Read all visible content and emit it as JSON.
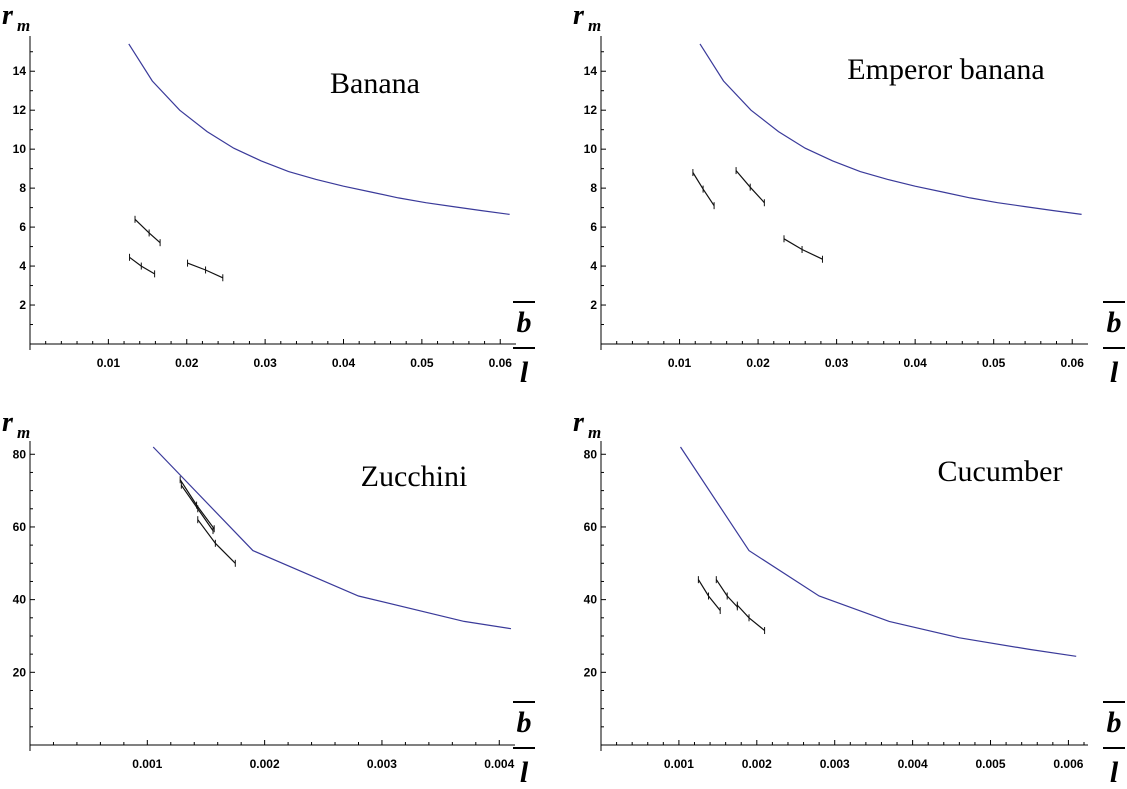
{
  "chart_data": [
    {
      "type": "line",
      "title": "Banana",
      "ylabel": "r",
      "ylabel_sub": "m",
      "xlabel_num": "b",
      "xlabel_den": "l",
      "xlim": [
        0,
        0.0615
      ],
      "ylim": [
        0,
        15.5
      ],
      "xticks": [
        0.01,
        0.02,
        0.03,
        0.04,
        0.05,
        0.06
      ],
      "xtick_labels": [
        "0.01",
        "0.02",
        "0.03",
        "0.04",
        "0.05",
        "0.06"
      ],
      "xminor": 0.002,
      "yticks": [
        2,
        4,
        6,
        8,
        10,
        12,
        14
      ],
      "ytick_labels": [
        "2",
        "4",
        "6",
        "8",
        "10",
        "12",
        "14"
      ],
      "yminor": 1,
      "curve_color": "#3a3a9a",
      "curve": [
        {
          "x": 0.0126,
          "y": 15.4
        },
        {
          "x": 0.0156,
          "y": 13.5
        },
        {
          "x": 0.0191,
          "y": 12.0
        },
        {
          "x": 0.0226,
          "y": 10.9
        },
        {
          "x": 0.026,
          "y": 10.05
        },
        {
          "x": 0.0295,
          "y": 9.4
        },
        {
          "x": 0.033,
          "y": 8.85
        },
        {
          "x": 0.0365,
          "y": 8.45
        },
        {
          "x": 0.04,
          "y": 8.1
        },
        {
          "x": 0.0435,
          "y": 7.8
        },
        {
          "x": 0.047,
          "y": 7.5
        },
        {
          "x": 0.0505,
          "y": 7.25
        },
        {
          "x": 0.054,
          "y": 7.05
        },
        {
          "x": 0.0575,
          "y": 6.85
        },
        {
          "x": 0.0612,
          "y": 6.65
        }
      ],
      "segments": [
        [
          {
            "x": 0.0134,
            "y": 6.4
          },
          {
            "x": 0.0152,
            "y": 5.7
          },
          {
            "x": 0.0166,
            "y": 5.2
          }
        ],
        [
          {
            "x": 0.0127,
            "y": 4.45
          },
          {
            "x": 0.0142,
            "y": 4.0
          },
          {
            "x": 0.0159,
            "y": 3.6
          }
        ],
        [
          {
            "x": 0.0201,
            "y": 4.15
          },
          {
            "x": 0.0224,
            "y": 3.8
          },
          {
            "x": 0.0246,
            "y": 3.4
          }
        ]
      ]
    },
    {
      "type": "line",
      "title": "Emperor banana",
      "ylabel": "r",
      "ylabel_sub": "m",
      "xlabel_num": "b",
      "xlabel_den": "l",
      "xlim": [
        0,
        0.0615
      ],
      "ylim": [
        0,
        15.5
      ],
      "xticks": [
        0.01,
        0.02,
        0.03,
        0.04,
        0.05,
        0.06
      ],
      "xtick_labels": [
        "0.01",
        "0.02",
        "0.03",
        "0.04",
        "0.05",
        "0.06"
      ],
      "xminor": 0.002,
      "yticks": [
        2,
        4,
        6,
        8,
        10,
        12,
        14
      ],
      "ytick_labels": [
        "2",
        "4",
        "6",
        "8",
        "10",
        "12",
        "14"
      ],
      "yminor": 1,
      "curve_color": "#3a3a9a",
      "curve": [
        {
          "x": 0.0126,
          "y": 15.4
        },
        {
          "x": 0.0156,
          "y": 13.5
        },
        {
          "x": 0.0191,
          "y": 12.0
        },
        {
          "x": 0.0226,
          "y": 10.9
        },
        {
          "x": 0.026,
          "y": 10.05
        },
        {
          "x": 0.0295,
          "y": 9.4
        },
        {
          "x": 0.033,
          "y": 8.85
        },
        {
          "x": 0.0365,
          "y": 8.45
        },
        {
          "x": 0.04,
          "y": 8.1
        },
        {
          "x": 0.0435,
          "y": 7.8
        },
        {
          "x": 0.047,
          "y": 7.5
        },
        {
          "x": 0.0505,
          "y": 7.25
        },
        {
          "x": 0.054,
          "y": 7.05
        },
        {
          "x": 0.0575,
          "y": 6.85
        },
        {
          "x": 0.0612,
          "y": 6.65
        }
      ],
      "segments": [
        [
          {
            "x": 0.0117,
            "y": 8.8
          },
          {
            "x": 0.013,
            "y": 7.95
          },
          {
            "x": 0.0144,
            "y": 7.1
          }
        ],
        [
          {
            "x": 0.0172,
            "y": 8.9
          },
          {
            "x": 0.019,
            "y": 8.05
          },
          {
            "x": 0.0208,
            "y": 7.25
          }
        ],
        [
          {
            "x": 0.0233,
            "y": 5.4
          },
          {
            "x": 0.0256,
            "y": 4.85
          },
          {
            "x": 0.0282,
            "y": 4.35
          }
        ]
      ]
    },
    {
      "type": "line",
      "title": "Zucchini",
      "ylabel": "r",
      "ylabel_sub": "m",
      "xlabel_num": "b",
      "xlabel_den": "l",
      "xlim": [
        0,
        0.0041
      ],
      "ylim": [
        0,
        82
      ],
      "xticks": [
        0.001,
        0.002,
        0.003,
        0.004
      ],
      "xtick_labels": [
        "0.001",
        "0.002",
        "0.003",
        "0.004"
      ],
      "xminor": 0.0002,
      "yticks": [
        20,
        40,
        60,
        80
      ],
      "ytick_labels": [
        "20",
        "40",
        "60",
        "80"
      ],
      "yminor": 5,
      "curve_color": "#3a3a9a",
      "curve": [
        {
          "x": 0.00105,
          "y": 82
        },
        {
          "x": 0.0019,
          "y": 53.5
        },
        {
          "x": 0.0028,
          "y": 41
        },
        {
          "x": 0.0037,
          "y": 34
        },
        {
          "x": 0.0041,
          "y": 32
        }
      ],
      "segments": [
        [
          {
            "x": 0.00128,
            "y": 73
          },
          {
            "x": 0.00142,
            "y": 66
          },
          {
            "x": 0.00157,
            "y": 59.5
          }
        ],
        [
          {
            "x": 0.00129,
            "y": 71.5
          },
          {
            "x": 0.00143,
            "y": 65
          },
          {
            "x": 0.00156,
            "y": 59
          }
        ],
        [
          {
            "x": 0.00143,
            "y": 62
          },
          {
            "x": 0.00158,
            "y": 55.5
          },
          {
            "x": 0.00175,
            "y": 50
          }
        ]
      ]
    },
    {
      "type": "line",
      "title": "Cucumber",
      "ylabel": "r",
      "ylabel_sub": "m",
      "xlabel_num": "b",
      "xlabel_den": "l",
      "xlim": [
        0,
        0.0062
      ],
      "ylim": [
        0,
        82
      ],
      "xticks": [
        0.001,
        0.002,
        0.003,
        0.004,
        0.005,
        0.006
      ],
      "xtick_labels": [
        "0.001",
        "0.002",
        "0.003",
        "0.004",
        "0.005",
        "0.006"
      ],
      "xminor": 0.0002,
      "yticks": [
        20,
        40,
        60,
        80
      ],
      "ytick_labels": [
        "20",
        "40",
        "60",
        "80"
      ],
      "yminor": 5,
      "curve_color": "#3a3a9a",
      "curve": [
        {
          "x": 0.00102,
          "y": 82
        },
        {
          "x": 0.0019,
          "y": 53.5
        },
        {
          "x": 0.0028,
          "y": 41
        },
        {
          "x": 0.0037,
          "y": 34
        },
        {
          "x": 0.0046,
          "y": 29.5
        },
        {
          "x": 0.0055,
          "y": 26.3
        },
        {
          "x": 0.0061,
          "y": 24.4
        }
      ],
      "segments": [
        [
          {
            "x": 0.00125,
            "y": 45.5
          },
          {
            "x": 0.00138,
            "y": 41
          },
          {
            "x": 0.00153,
            "y": 37
          }
        ],
        [
          {
            "x": 0.00148,
            "y": 45.5
          },
          {
            "x": 0.00162,
            "y": 41
          },
          {
            "x": 0.00175,
            "y": 38
          }
        ],
        [
          {
            "x": 0.00175,
            "y": 38.5
          },
          {
            "x": 0.0019,
            "y": 35
          },
          {
            "x": 0.0021,
            "y": 31.5
          }
        ]
      ]
    }
  ]
}
